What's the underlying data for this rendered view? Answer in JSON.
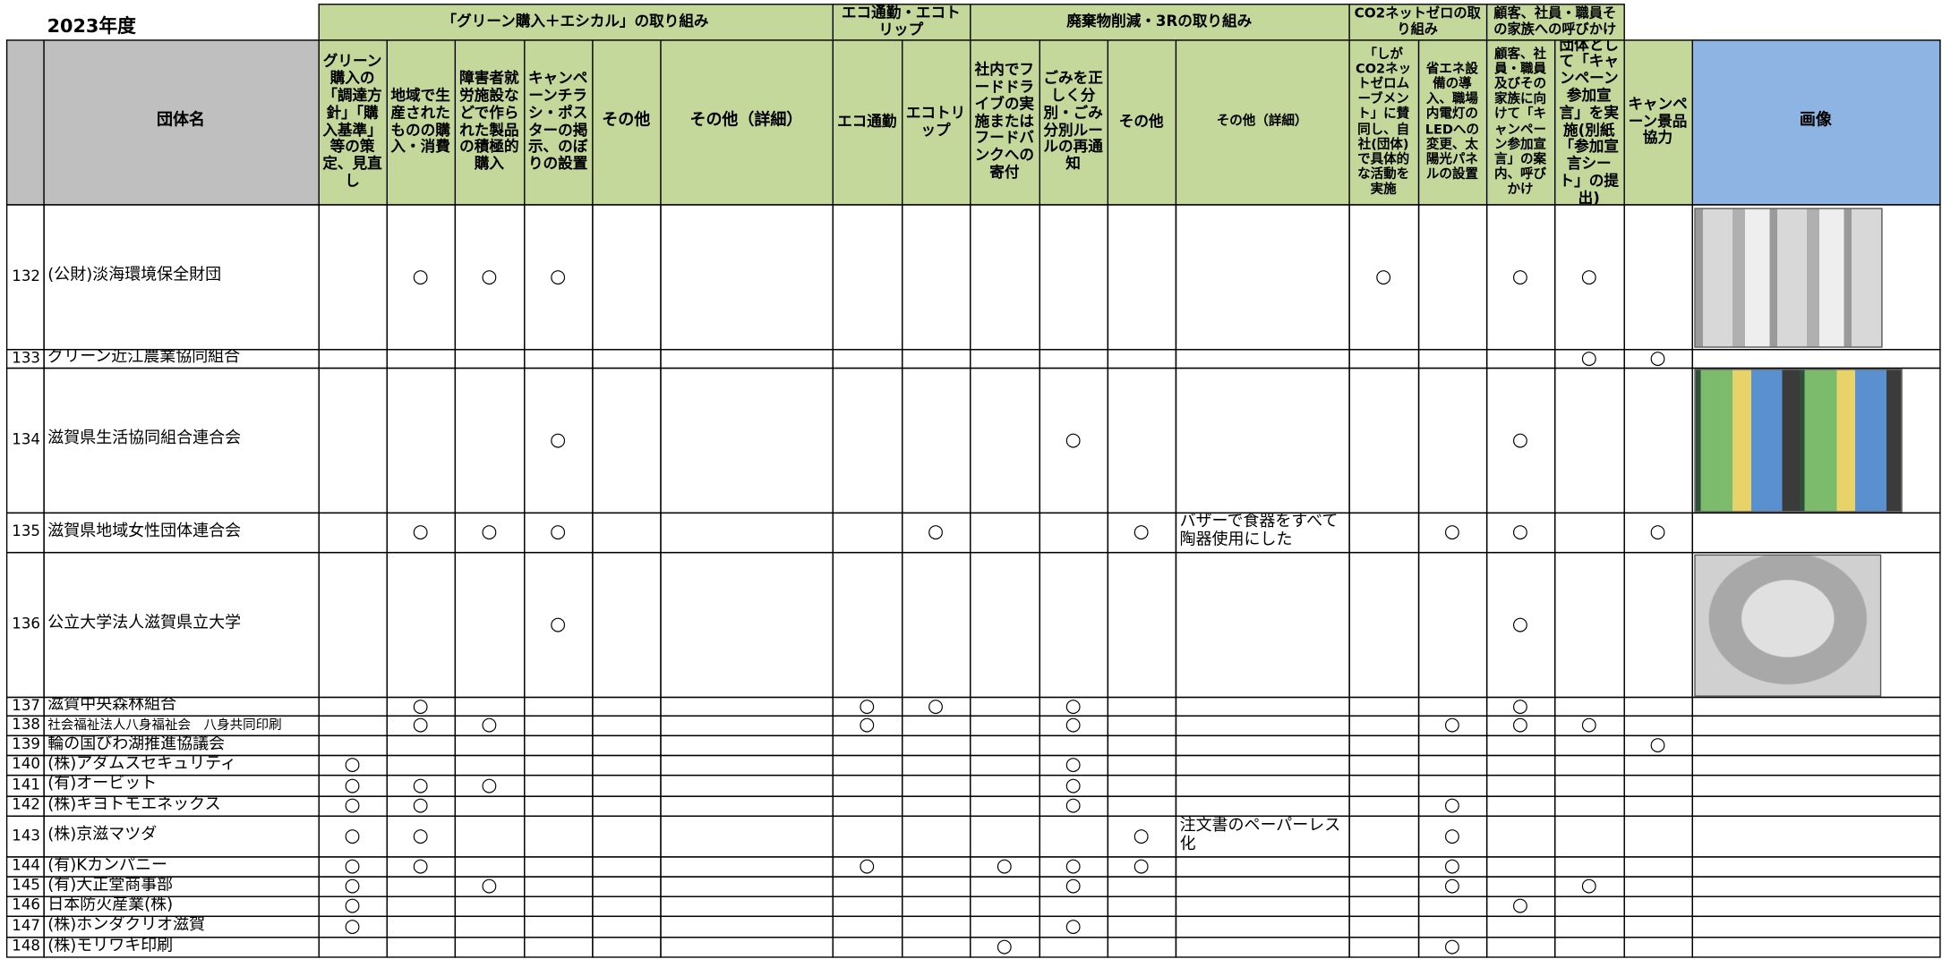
{
  "year": "2023年度",
  "group_headers": [
    "「グリーン購入＋エシカル」の取り組み",
    "エコ通勤・エコトリップ",
    "廃棄物削減・3Rの取り組み",
    "CO2ネットゼロの取り組み",
    "顧客、社員・職員その家族への呼びかけ"
  ],
  "name_header": "団体名",
  "image_header": "画像",
  "columns": [
    "グリーン購入の「調達方針」「購入基準」等の策定、見直し",
    "地域で生産されたものの購入・消費",
    "障害者就労施設などで作られた製品の積極的購入",
    "キャンペーンチラシ・ポスターの掲示、のぼりの設置",
    "その他",
    "その他（詳細）",
    "エコ通勤",
    "エコトリップ",
    "社内でフードドライブの実施またはフードバンクへの寄付",
    "ごみを正しく分別・ごみ分別ルールの再通知",
    "その他",
    "その他（詳細）",
    "「しがCO2ネットゼロムーブメント」に賛同し、自社(団体)で具体的な活動を実施",
    "省エネ設備の導入、職場内電灯のLEDへの変更、太陽光パネルの設置",
    "顧客、社員・職員及びその家族に向けて「キャンペーン参加宣言」の案内、呼びかけ",
    "団体として「キャンペーン参加宣言」を実施(別紙「参加宣言シート」の提出)",
    "キャンペーン景品協力"
  ],
  "rows": [
    {
      "no": 132,
      "name": "(公財)淡海環境保全財団",
      "cells": [
        null,
        "○",
        "○",
        "○",
        null,
        null,
        null,
        null,
        null,
        null,
        null,
        null,
        "○",
        null,
        "○",
        "○",
        null
      ]
    },
    {
      "no": 133,
      "name": "グリーン近江農業協同組合",
      "cells": [
        null,
        null,
        null,
        null,
        null,
        null,
        null,
        null,
        null,
        null,
        null,
        null,
        null,
        null,
        null,
        "○",
        "○"
      ]
    },
    {
      "no": 134,
      "name": "滋賀県生活協同組合連合会",
      "cells": [
        null,
        null,
        null,
        "○",
        null,
        null,
        null,
        null,
        null,
        "○",
        null,
        null,
        null,
        null,
        "○",
        null,
        null
      ]
    },
    {
      "no": 135,
      "name": "滋賀県地域女性団体連合会",
      "cells": [
        null,
        "○",
        "○",
        "○",
        null,
        null,
        null,
        "○",
        null,
        null,
        "○",
        "バザーで食器をすべて陶器使用にした",
        null,
        "○",
        "○",
        null,
        "○"
      ]
    },
    {
      "no": 136,
      "name": "公立大学法人滋賀県立大学",
      "cells": [
        null,
        null,
        null,
        "○",
        null,
        null,
        null,
        null,
        null,
        null,
        null,
        null,
        null,
        null,
        "○",
        null,
        null
      ]
    },
    {
      "no": 137,
      "name": "滋賀中央森林組合",
      "cells": [
        null,
        "○",
        null,
        null,
        null,
        null,
        "○",
        "○",
        null,
        "○",
        null,
        null,
        null,
        null,
        "○",
        null,
        null
      ]
    },
    {
      "no": 138,
      "name": "社会福祉法人八身福祉会　八身共同印刷",
      "cells": [
        null,
        "○",
        "○",
        null,
        null,
        null,
        "○",
        null,
        null,
        "○",
        null,
        null,
        null,
        "○",
        "○",
        "○",
        null
      ]
    },
    {
      "no": 139,
      "name": "輪の国びわ湖推進協議会",
      "cells": [
        null,
        null,
        null,
        null,
        null,
        null,
        null,
        null,
        null,
        null,
        null,
        null,
        null,
        null,
        null,
        null,
        "○"
      ]
    },
    {
      "no": 140,
      "name": "(株)アダムスセキュリティ",
      "cells": [
        "○",
        null,
        null,
        null,
        null,
        null,
        null,
        null,
        null,
        "○",
        null,
        null,
        null,
        null,
        null,
        null,
        null
      ]
    },
    {
      "no": 141,
      "name": "(有)オービット",
      "cells": [
        "○",
        "○",
        "○",
        null,
        null,
        null,
        null,
        null,
        null,
        "○",
        null,
        null,
        null,
        null,
        null,
        null,
        null
      ]
    },
    {
      "no": 142,
      "name": "(株)キヨトモエネックス",
      "cells": [
        "○",
        "○",
        null,
        null,
        null,
        null,
        null,
        null,
        null,
        "○",
        null,
        null,
        null,
        "○",
        null,
        null,
        null
      ]
    },
    {
      "no": 143,
      "name": "(株)京滋マツダ",
      "cells": [
        "○",
        "○",
        null,
        null,
        null,
        null,
        null,
        null,
        null,
        null,
        "○",
        "注文書のペーパーレス化",
        null,
        "○",
        null,
        null,
        null
      ]
    },
    {
      "no": 144,
      "name": "(有)Kカンパニー",
      "cells": [
        "○",
        "○",
        null,
        null,
        null,
        null,
        "○",
        null,
        "○",
        "○",
        "○",
        null,
        null,
        "○",
        null,
        null,
        null
      ]
    },
    {
      "no": 145,
      "name": "(有)大正堂商事部",
      "cells": [
        "○",
        null,
        "○",
        null,
        null,
        null,
        null,
        null,
        null,
        "○",
        null,
        null,
        null,
        "○",
        null,
        "○",
        null
      ]
    },
    {
      "no": 146,
      "name": "日本防火産業(株)",
      "cells": [
        "○",
        null,
        null,
        null,
        null,
        null,
        null,
        null,
        null,
        null,
        null,
        null,
        null,
        null,
        "○",
        null,
        null
      ]
    },
    {
      "no": 147,
      "name": "(株)ホンダクリオ滋賀",
      "cells": [
        "○",
        null,
        null,
        null,
        null,
        null,
        null,
        null,
        null,
        "○",
        null,
        null,
        null,
        null,
        null,
        null,
        null
      ]
    },
    {
      "no": 148,
      "name": "(株)モリワキ印刷",
      "cells": [
        null,
        null,
        null,
        null,
        null,
        null,
        null,
        null,
        "○",
        null,
        null,
        null,
        null,
        "○",
        null,
        null,
        null
      ]
    }
  ]
}
